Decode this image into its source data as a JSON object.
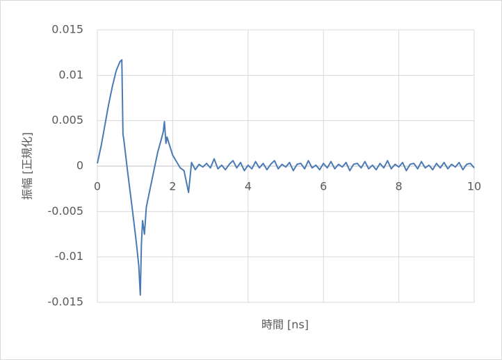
{
  "chart_data": {
    "type": "line",
    "xlabel": "時間 [ns]",
    "ylabel": "振幅 [正規化]",
    "xlim": [
      0,
      10
    ],
    "xticks": [
      0,
      2,
      4,
      6,
      8,
      10
    ],
    "ylim": [
      -0.015,
      0.015
    ],
    "yticks": [
      0.015,
      0.01,
      0.005,
      0,
      -0.005,
      -0.01,
      -0.015
    ],
    "grid": true,
    "x": [
      0,
      0.1,
      0.2,
      0.3,
      0.4,
      0.5,
      0.6,
      0.65,
      0.68,
      0.7,
      0.8,
      0.9,
      1.0,
      1.05,
      1.1,
      1.14,
      1.17,
      1.2,
      1.25,
      1.3,
      1.4,
      1.5,
      1.6,
      1.7,
      1.75,
      1.78,
      1.82,
      1.85,
      1.9,
      2.0,
      2.1,
      2.2,
      2.3,
      2.42,
      2.5,
      2.6,
      2.7,
      2.8,
      2.9,
      3.0,
      3.1,
      3.2,
      3.3,
      3.4,
      3.5,
      3.6,
      3.7,
      3.8,
      3.9,
      4.0,
      4.1,
      4.2,
      4.3,
      4.4,
      4.5,
      4.6,
      4.7,
      4.8,
      4.9,
      5.0,
      5.1,
      5.2,
      5.3,
      5.4,
      5.5,
      5.6,
      5.7,
      5.8,
      5.9,
      6.0,
      6.1,
      6.2,
      6.3,
      6.4,
      6.5,
      6.6,
      6.7,
      6.8,
      6.9,
      7.0,
      7.1,
      7.2,
      7.3,
      7.4,
      7.5,
      7.6,
      7.7,
      7.8,
      7.9,
      8.0,
      8.1,
      8.2,
      8.3,
      8.4,
      8.5,
      8.6,
      8.7,
      8.8,
      8.9,
      9.0,
      9.1,
      9.2,
      9.3,
      9.4,
      9.5,
      9.6,
      9.7,
      9.8,
      9.9,
      10.0
    ],
    "series": [
      {
        "color": "#4a7ab5",
        "values": [
          0.0003,
          0.0022,
          0.0045,
          0.0068,
          0.0088,
          0.0105,
          0.0115,
          0.0117,
          0.0035,
          0.003,
          -0.0005,
          -0.0038,
          -0.0072,
          -0.009,
          -0.011,
          -0.0142,
          -0.0085,
          -0.006,
          -0.0075,
          -0.0045,
          -0.0025,
          -0.0005,
          0.0015,
          0.003,
          0.0038,
          0.0049,
          0.0025,
          0.0032,
          0.0025,
          0.0012,
          0.0005,
          -0.0002,
          -0.0005,
          -0.0029,
          0.0004,
          -0.0004,
          0.0002,
          -0.0001,
          0.0003,
          -0.0002,
          0.0008,
          -0.0003,
          0.0001,
          -0.0004,
          0.0002,
          0.0006,
          -0.0002,
          0.0004,
          -0.0005,
          0.0001,
          -0.0003,
          0.0005,
          -0.0002,
          0.0003,
          -0.0004,
          0.0002,
          0.0006,
          -0.0003,
          0.0002,
          -0.0001,
          0.0004,
          -0.0005,
          0.0002,
          0.0003,
          -0.0003,
          0.0006,
          -0.0002,
          0.0001,
          -0.0004,
          0.0003,
          -0.0002,
          0.0005,
          -0.0003,
          0.0002,
          -0.0001,
          0.0004,
          -0.0005,
          0.0002,
          0.0003,
          -0.0002,
          0.0005,
          -0.0003,
          0.0001,
          -0.0004,
          0.0003,
          -0.0002,
          0.0006,
          -0.0003,
          0.0002,
          -0.0001,
          0.0004,
          -0.0005,
          0.0002,
          0.0003,
          -0.0003,
          0.0005,
          -0.0002,
          0.0001,
          -0.0004,
          0.0003,
          -0.0002,
          0.0004,
          -0.0003,
          0.0002,
          -0.0001,
          0.0004,
          -0.0004,
          0.0002,
          0.0003,
          -0.0002
        ]
      }
    ]
  }
}
